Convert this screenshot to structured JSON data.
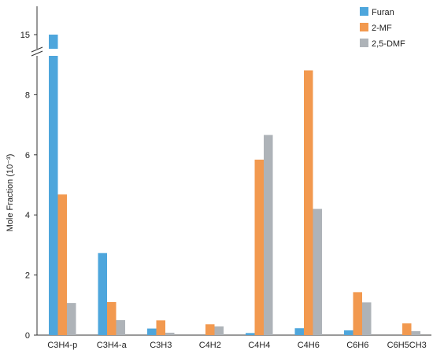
{
  "chart_data": {
    "type": "bar",
    "ylabel": "Mole Fraction (10⁻³)",
    "categories": [
      "C3H4-p",
      "C3H4-a",
      "C3H3",
      "C4H2",
      "C4H4",
      "C4H6",
      "C6H6",
      "C6H5CH3"
    ],
    "series": [
      {
        "name": "Furan",
        "color": "#4ea6dc",
        "values": [
          15.0,
          2.73,
          0.22,
          0.0,
          0.07,
          0.23,
          0.16,
          0.0
        ]
      },
      {
        "name": "2-MF",
        "color": "#f2994f",
        "values": [
          4.68,
          1.1,
          0.49,
          0.36,
          5.84,
          8.81,
          1.43,
          0.39
        ]
      },
      {
        "name": "2,5-DMF",
        "color": "#aeb3b8",
        "values": [
          1.07,
          0.5,
          0.08,
          0.29,
          6.66,
          4.2,
          1.09,
          0.13
        ]
      }
    ],
    "yticks": [
      0,
      2,
      4,
      6,
      8,
      15
    ],
    "ylim": [
      0,
      15
    ],
    "axis_break": true,
    "grid": false,
    "legend_position": "top-right"
  }
}
